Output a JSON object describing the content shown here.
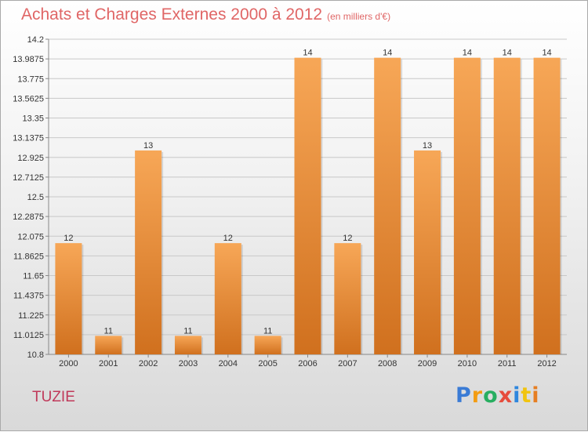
{
  "title": "Achats et Charges Externes 2000 à 2012",
  "subtitle": "(en milliers d'€)",
  "commune": "TUZIE",
  "logo": {
    "letters": [
      "P",
      "r",
      "o",
      "x",
      "i",
      "t",
      "i"
    ],
    "colors": [
      "#3a7bd5",
      "#f39c12",
      "#27ae60",
      "#e74c3c",
      "#2e86de",
      "#f1c40f",
      "#e67e22"
    ]
  },
  "colors": {
    "bar_top": "#f7a757",
    "bar_bottom": "#d0701e",
    "title": "#e06666",
    "commune": "#c0395a"
  },
  "chart_data": {
    "type": "bar",
    "categories": [
      "2000",
      "2001",
      "2002",
      "2003",
      "2004",
      "2005",
      "2006",
      "2007",
      "2008",
      "2009",
      "2010",
      "2011",
      "2012"
    ],
    "values": [
      12,
      11,
      13,
      11,
      12,
      11,
      14,
      12,
      14,
      13,
      14,
      14,
      14
    ],
    "data_labels": [
      "12",
      "11",
      "13",
      "11",
      "12",
      "11",
      "14",
      "12",
      "14",
      "13",
      "14",
      "14",
      "14"
    ],
    "yticks": [
      10.8,
      11.0125,
      11.225,
      11.4375,
      11.65,
      11.8625,
      12.075,
      12.2875,
      12.5,
      12.7125,
      12.925,
      13.1375,
      13.35,
      13.5625,
      13.775,
      13.9875,
      14.2
    ],
    "ytick_labels": [
      "10.8",
      "11.0125",
      "11.225",
      "11.4375",
      "11.65",
      "11.8625",
      "12.075",
      "12.2875",
      "12.5",
      "12.7125",
      "12.925",
      "13.1375",
      "13.35",
      "13.5625",
      "13.775",
      "13.9875",
      "14.2"
    ],
    "ylim": [
      10.8,
      14.2
    ],
    "grid": true,
    "legend": "none",
    "xlabel": "",
    "ylabel": ""
  }
}
